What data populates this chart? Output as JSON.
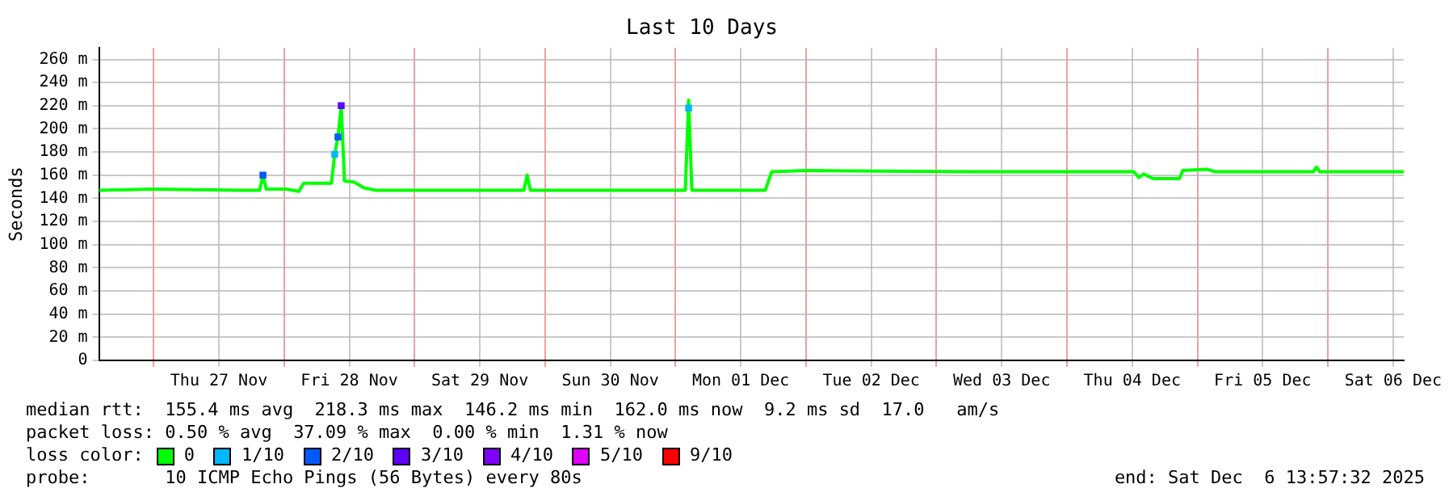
{
  "chart_data": {
    "type": "line",
    "title": "Last 10 Days",
    "ylabel": "Seconds",
    "legend_title": "loss color:",
    "xlim": [
      "2025-11-26T13:57",
      "2025-12-06T13:57"
    ],
    "xticks": [
      {
        "value": "2025-11-27T00:00",
        "label": null
      },
      {
        "value": "2025-11-27T12:00",
        "label": "Thu 27 Nov"
      },
      {
        "value": "2025-11-28T00:00",
        "label": null
      },
      {
        "value": "2025-11-28T12:00",
        "label": "Fri 28 Nov"
      },
      {
        "value": "2025-11-29T00:00",
        "label": null
      },
      {
        "value": "2025-11-29T12:00",
        "label": "Sat 29 Nov"
      },
      {
        "value": "2025-11-30T00:00",
        "label": null
      },
      {
        "value": "2025-11-30T12:00",
        "label": "Sun 30 Nov"
      },
      {
        "value": "2025-12-01T00:00",
        "label": null
      },
      {
        "value": "2025-12-01T12:00",
        "label": "Mon 01 Dec"
      },
      {
        "value": "2025-12-02T00:00",
        "label": null
      },
      {
        "value": "2025-12-02T12:00",
        "label": "Tue 02 Dec"
      },
      {
        "value": "2025-12-03T00:00",
        "label": null
      },
      {
        "value": "2025-12-03T12:00",
        "label": "Wed 03 Dec"
      },
      {
        "value": "2025-12-04T00:00",
        "label": null
      },
      {
        "value": "2025-12-04T12:00",
        "label": "Thu 04 Dec"
      },
      {
        "value": "2025-12-05T00:00",
        "label": null
      },
      {
        "value": "2025-12-05T12:00",
        "label": "Fri 05 Dec"
      },
      {
        "value": "2025-12-06T00:00",
        "label": null
      },
      {
        "value": "2025-12-06T12:00",
        "label": "Sat 06 Dec"
      }
    ],
    "ylim": [
      0,
      270
    ],
    "yticks": [
      {
        "value": 0,
        "label": "0"
      },
      {
        "value": 20,
        "label": "20 m"
      },
      {
        "value": 40,
        "label": "40 m"
      },
      {
        "value": 60,
        "label": "60 m"
      },
      {
        "value": 80,
        "label": "80 m"
      },
      {
        "value": 100,
        "label": "100 m"
      },
      {
        "value": 120,
        "label": "120 m"
      },
      {
        "value": 140,
        "label": "140 m"
      },
      {
        "value": 160,
        "label": "160 m"
      },
      {
        "value": 180,
        "label": "180 m"
      },
      {
        "value": 200,
        "label": "200 m"
      },
      {
        "value": 220,
        "label": "220 m"
      },
      {
        "value": 240,
        "label": "240 m"
      },
      {
        "value": 260,
        "label": "260 m"
      }
    ],
    "grid": true,
    "legend": "bottom",
    "marker": "none",
    "line_style": "solid",
    "series": [
      {
        "name": "0",
        "color": "#00ff00",
        "x": [
          "2025-11-26T13:57",
          "2025-11-27T00:00",
          "2025-11-27T15:18",
          "2025-11-27T19:30",
          "2025-11-27T20:06",
          "2025-11-27T20:42",
          "2025-11-28T00:18",
          "2025-11-28T02:42",
          "2025-11-28T03:36",
          "2025-11-28T08:42",
          "2025-11-28T09:18",
          "2025-11-28T09:54",
          "2025-11-28T10:30",
          "2025-11-28T11:06",
          "2025-11-28T12:54",
          "2025-11-28T14:42",
          "2025-11-28T16:48",
          "2025-11-29T20:06",
          "2025-11-29T20:42",
          "2025-11-29T21:18",
          "2025-12-01T01:48",
          "2025-12-01T02:24",
          "2025-12-01T03:00",
          "2025-12-01T16:30",
          "2025-12-01T17:06",
          "2025-12-01T17:42",
          "2025-12-02T00:18",
          "2025-12-03T06:18",
          "2025-12-04T12:18",
          "2025-12-04T13:12",
          "2025-12-04T14:06",
          "2025-12-04T15:54",
          "2025-12-04T20:42",
          "2025-12-04T21:18",
          "2025-12-05T01:48",
          "2025-12-05T03:18",
          "2025-12-05T21:18",
          "2025-12-05T21:54",
          "2025-12-05T22:30",
          "2025-12-06T13:57"
        ],
        "values": [
          147,
          148,
          147,
          147,
          160,
          148,
          148,
          146,
          153,
          153,
          178,
          193,
          220,
          155,
          154,
          149,
          147,
          147,
          160,
          147,
          147,
          225,
          147,
          147,
          155,
          163,
          164,
          163,
          163,
          158,
          161,
          157,
          157,
          164,
          165,
          163,
          163,
          167,
          163,
          163
        ]
      },
      {
        "name": "1/10",
        "color": "#00b8ff",
        "type": "scatter",
        "marker": "square",
        "x": [
          "2025-11-28T09:18",
          "2025-12-01T02:24"
        ],
        "values": [
          178,
          218
        ]
      },
      {
        "name": "2/10",
        "color": "#0059ff",
        "type": "scatter",
        "marker": "square",
        "x": [
          "2025-11-27T20:06",
          "2025-11-28T09:54"
        ],
        "values": [
          160,
          193
        ]
      },
      {
        "name": "3/10",
        "color": "#5e00ff",
        "type": "scatter",
        "marker": "square",
        "x": [
          "2025-11-28T10:30"
        ],
        "values": [
          220
        ]
      },
      {
        "name": "4/10",
        "color": "#7e00ff",
        "type": "scatter",
        "marker": "square"
      },
      {
        "name": "5/10",
        "color": "#dd00ff",
        "type": "scatter",
        "marker": "square"
      },
      {
        "name": "9/10",
        "color": "#ff0000",
        "type": "scatter",
        "marker": "square"
      }
    ],
    "annotations": [
      "median rtt:  155.4 ms avg  218.3 ms max  146.2 ms min  162.0 ms now  9.2 ms sd  17.0   am/s",
      "packet loss: 0.50 % avg  37.09 % max  0.00 % min  1.31 % now",
      "probe:       10 ICMP Echo Pings (56 Bytes) every 80s",
      "end: Sat Dec  6 13:57:32 2025"
    ]
  }
}
